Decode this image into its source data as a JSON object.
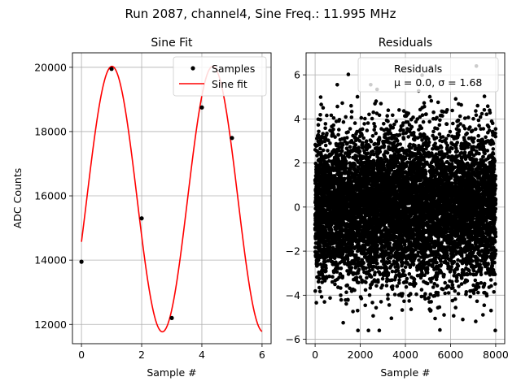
{
  "figure_title": "Run 2087, channel4, Sine Freq.: 11.995 MHz",
  "chart_data": [
    {
      "type": "line",
      "title": "Sine Fit",
      "xlabel": "Sample #",
      "ylabel": "ADC Counts",
      "xlim": [
        -0.3,
        6.3
      ],
      "ylim": [
        11400,
        20450
      ],
      "xticks": [
        0,
        2,
        4,
        6
      ],
      "yticks": [
        12000,
        14000,
        16000,
        18000,
        20000
      ],
      "xtick_labels": [
        "0",
        "2",
        "4",
        "6"
      ],
      "ytick_labels": [
        "12000",
        "14000",
        "16000",
        "18000",
        "20000"
      ],
      "grid": true,
      "legend_position": "top-right",
      "series": [
        {
          "name": "Samples",
          "kind": "scatter",
          "color": "#000000",
          "x": [
            0,
            1,
            2,
            3,
            4,
            5
          ],
          "y": [
            13950,
            19950,
            15300,
            12200,
            18750,
            17800
          ]
        },
        {
          "name": "Sine fit",
          "kind": "line",
          "color": "#ff0000",
          "model": {
            "offset": 15900,
            "amplitude": 4130,
            "cycles_per_sample": 0.2985,
            "phase_deg": -18.8
          },
          "x_range": [
            0,
            6
          ]
        }
      ]
    },
    {
      "type": "scatter",
      "title": "Residuals",
      "xlabel": "Sample #",
      "ylabel": "",
      "xlim": [
        -400,
        8400
      ],
      "ylim": [
        -6.2,
        7.0
      ],
      "xticks": [
        0,
        2000,
        4000,
        6000,
        8000
      ],
      "yticks": [
        -6,
        -4,
        -2,
        0,
        2,
        4,
        6
      ],
      "xtick_labels": [
        "0",
        "2000",
        "4000",
        "6000",
        "8000"
      ],
      "ytick_labels": [
        "−6",
        "−4",
        "−2",
        "0",
        "2",
        "4",
        "6"
      ],
      "grid": true,
      "legend_position": "top-right",
      "series": [
        {
          "name": "Residuals",
          "kind": "scatter",
          "color": "#000000",
          "count": 8000,
          "x_range": [
            0,
            8000
          ],
          "mean": 0.0,
          "std": 1.68,
          "note": "dense noise cloud, approximately normal; extreme points reach about 6.4 and -5.6"
        }
      ],
      "legend": {
        "label": "Residuals",
        "stats": "μ = 0.0, σ = 1.68"
      }
    }
  ]
}
